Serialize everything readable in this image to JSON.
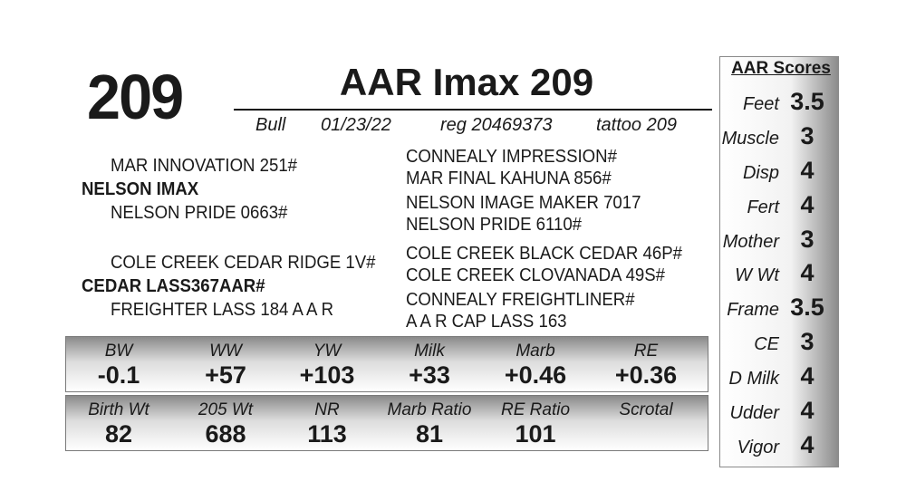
{
  "header": {
    "lot_number": "209",
    "animal_name": "AAR Imax 209",
    "sex": "Bull",
    "birth_date": "01/23/22",
    "registration": "reg 20469373",
    "tattoo": "tattoo 209"
  },
  "pedigree": {
    "sire": "NELSON IMAX",
    "sire_sire": "MAR INNOVATION 251#",
    "sire_sire_sire": "CONNEALY IMPRESSION#",
    "sire_sire_dam": "MAR FINAL KAHUNA 856#",
    "sire_dam": "NELSON PRIDE 0663#",
    "sire_dam_sire": "NELSON IMAGE MAKER 7017",
    "sire_dam_dam": "NELSON PRIDE 6110#",
    "dam": "CEDAR LASS367AAR#",
    "dam_sire": "COLE CREEK CEDAR RIDGE 1V#",
    "dam_sire_sire": "COLE CREEK BLACK CEDAR 46P#",
    "dam_sire_dam": "COLE CREEK CLOVANADA 49S#",
    "dam_dam": "FREIGHTER LASS 184 A A R",
    "dam_dam_sire": "CONNEALY FREIGHTLINER#",
    "dam_dam_dam": "A A R CAP LASS 163"
  },
  "epds": [
    {
      "label": "BW",
      "value": "-0.1"
    },
    {
      "label": "WW",
      "value": "+57"
    },
    {
      "label": "YW",
      "value": "+103"
    },
    {
      "label": "Milk",
      "value": "+33"
    },
    {
      "label": "Marb",
      "value": "+0.46"
    },
    {
      "label": "RE",
      "value": "+0.36"
    }
  ],
  "performance": [
    {
      "label": "Birth Wt",
      "value": "82"
    },
    {
      "label": "205 Wt",
      "value": "688"
    },
    {
      "label": "NR",
      "value": "113"
    },
    {
      "label": "Marb Ratio",
      "value": "81"
    },
    {
      "label": "RE Ratio",
      "value": "101"
    },
    {
      "label": "Scrotal",
      "value": ""
    }
  ],
  "aar_scores": {
    "title": "AAR Scores",
    "items": [
      {
        "label": "Feet",
        "value": "3.5"
      },
      {
        "label": "Muscle",
        "value": "3"
      },
      {
        "label": "Disp",
        "value": "4"
      },
      {
        "label": "Fert",
        "value": "4"
      },
      {
        "label": "Mother",
        "value": "3"
      },
      {
        "label": "W Wt",
        "value": "4"
      },
      {
        "label": "Frame",
        "value": "3.5"
      },
      {
        "label": "CE",
        "value": "3"
      },
      {
        "label": "D Milk",
        "value": "4"
      },
      {
        "label": "Udder",
        "value": "4"
      },
      {
        "label": "Vigor",
        "value": "4"
      }
    ]
  }
}
